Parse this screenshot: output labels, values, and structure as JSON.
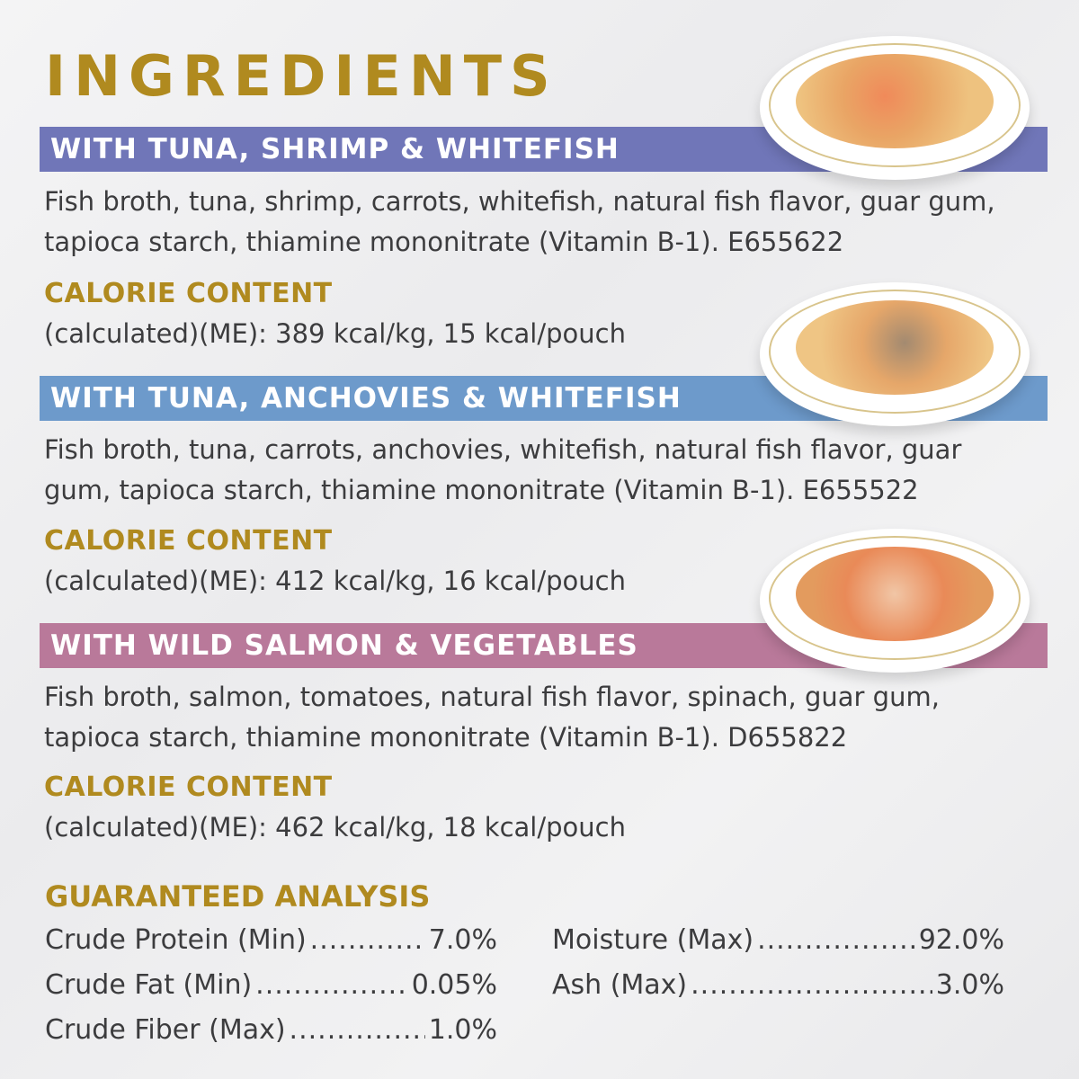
{
  "title": "INGREDIENTS",
  "products": [
    {
      "name": "WITH TUNA, SHRIMP & WHITEFISH",
      "ingredients": "Fish broth, tuna, shrimp, carrots, whitefish, natural fish flavor, guar gum, tapioca starch, thiamine mononitrate (Vitamin B-1).  E655622",
      "calorie_heading": "CALORIE CONTENT",
      "calorie_text": "(calculated)(ME): 389 kcal/kg, 15 kcal/pouch",
      "color": "#7076b8"
    },
    {
      "name": "WITH TUNA, ANCHOVIES & WHITEFISH",
      "ingredients": "Fish broth, tuna, carrots, anchovies, whitefish, natural fish flavor, guar gum, tapioca starch, thiamine mononitrate (Vitamin B-1).  E655522",
      "calorie_heading": "CALORIE CONTENT",
      "calorie_text": "(calculated)(ME): 412 kcal/kg, 16 kcal/pouch",
      "color": "#6d9acb"
    },
    {
      "name": "WITH WILD SALMON & VEGETABLES",
      "ingredients": "Fish broth, salmon, tomatoes, natural fish flavor, spinach, guar gum, tapioca starch, thiamine mononitrate (Vitamin B-1). D655822",
      "calorie_heading": "CALORIE CONTENT",
      "calorie_text": "(calculated)(ME): 462 kcal/kg, 18 kcal/pouch",
      "color": "#b9799a"
    }
  ],
  "analysis": {
    "heading": "GUARANTEED ANALYSIS",
    "left": [
      {
        "label": "Crude Protein (Min)",
        "value": "7.0%"
      },
      {
        "label": "Crude Fat (Min)",
        "value": "0.05%"
      },
      {
        "label": "Crude Fiber (Max)",
        "value": "1.0%"
      }
    ],
    "right": [
      {
        "label": "Moisture (Max)",
        "value": "92.0%"
      },
      {
        "label": "Ash (Max)",
        "value": "3.0%"
      }
    ]
  },
  "accent_color": "#b08a1f"
}
